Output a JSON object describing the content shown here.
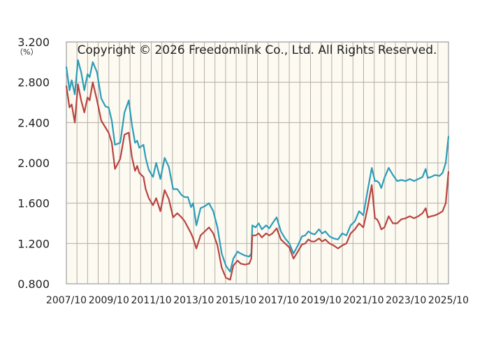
{
  "copyright": "Copyright © 2026 Freedomlink Co., Ltd. All Rights Reserved.",
  "colors": {
    "background": "#fdfaf2",
    "grid": "#b3aea6",
    "series_teal": "#2b9db8",
    "series_red": "#b84440"
  },
  "chart_data": {
    "type": "line",
    "y_unit_label": "（%）",
    "ylim": [
      0.8,
      3.2
    ],
    "yticks": [
      "0.800",
      "1.200",
      "1.600",
      "2.000",
      "2.400",
      "2.800",
      "3.200"
    ],
    "xlim": [
      2007.75,
      2025.83
    ],
    "xticks": [
      "2007/10",
      "2009/10",
      "2011/10",
      "2013/10",
      "2015/10",
      "2017/10",
      "2019/10",
      "2021/10",
      "2023/10",
      "2025/10"
    ],
    "grid": true,
    "series": [
      {
        "color": "#2b9db8",
        "x": [
          2007.75,
          2007.9,
          2008.0,
          2008.15,
          2008.3,
          2008.45,
          2008.6,
          2008.75,
          2008.85,
          2009.0,
          2009.2,
          2009.4,
          2009.6,
          2009.75,
          2009.9,
          2010.05,
          2010.3,
          2010.5,
          2010.7,
          2010.85,
          2011.0,
          2011.1,
          2011.2,
          2011.4,
          2011.5,
          2011.65,
          2011.85,
          2012.0,
          2012.2,
          2012.4,
          2012.6,
          2012.8,
          2013.0,
          2013.2,
          2013.35,
          2013.5,
          2013.65,
          2013.75,
          2013.9,
          2014.1,
          2014.3,
          2014.5,
          2014.7,
          2014.9,
          2015.1,
          2015.3,
          2015.5,
          2015.65,
          2015.85,
          2016.0,
          2016.2,
          2016.4,
          2016.5,
          2016.55,
          2016.7,
          2016.85,
          2017.0,
          2017.2,
          2017.35,
          2017.5,
          2017.7,
          2017.9,
          2018.1,
          2018.3,
          2018.5,
          2018.7,
          2018.9,
          2019.05,
          2019.2,
          2019.35,
          2019.5,
          2019.7,
          2019.85,
          2020.0,
          2020.2,
          2020.4,
          2020.6,
          2020.8,
          2021.0,
          2021.2,
          2021.4,
          2021.6,
          2021.8,
          2022.0,
          2022.2,
          2022.35,
          2022.45,
          2022.55,
          2022.65,
          2022.8,
          2023.0,
          2023.2,
          2023.4,
          2023.6,
          2023.8,
          2024.0,
          2024.2,
          2024.4,
          2024.6,
          2024.75,
          2024.85,
          2025.0,
          2025.2,
          2025.4,
          2025.55,
          2025.7,
          2025.83
        ],
        "values": [
          2.95,
          2.72,
          2.82,
          2.68,
          3.02,
          2.9,
          2.72,
          2.88,
          2.85,
          3.0,
          2.9,
          2.64,
          2.56,
          2.55,
          2.42,
          2.18,
          2.2,
          2.5,
          2.62,
          2.38,
          2.2,
          2.22,
          2.15,
          2.18,
          2.05,
          1.93,
          1.86,
          2.0,
          1.84,
          2.05,
          1.96,
          1.74,
          1.74,
          1.68,
          1.66,
          1.66,
          1.56,
          1.6,
          1.38,
          1.55,
          1.57,
          1.6,
          1.52,
          1.36,
          1.1,
          0.98,
          0.92,
          1.05,
          1.12,
          1.1,
          1.08,
          1.07,
          1.1,
          1.38,
          1.36,
          1.4,
          1.34,
          1.38,
          1.35,
          1.4,
          1.46,
          1.32,
          1.25,
          1.2,
          1.1,
          1.18,
          1.27,
          1.28,
          1.32,
          1.3,
          1.29,
          1.34,
          1.3,
          1.32,
          1.27,
          1.25,
          1.24,
          1.3,
          1.28,
          1.38,
          1.42,
          1.52,
          1.48,
          1.72,
          1.95,
          1.82,
          1.82,
          1.8,
          1.75,
          1.85,
          1.95,
          1.88,
          1.82,
          1.83,
          1.82,
          1.84,
          1.82,
          1.84,
          1.86,
          1.94,
          1.85,
          1.86,
          1.88,
          1.87,
          1.9,
          2.0,
          2.26
        ]
      },
      {
        "color": "#b84440",
        "x": [
          2007.75,
          2007.9,
          2008.0,
          2008.15,
          2008.3,
          2008.45,
          2008.6,
          2008.75,
          2008.85,
          2009.0,
          2009.2,
          2009.4,
          2009.6,
          2009.75,
          2009.9,
          2010.05,
          2010.3,
          2010.5,
          2010.7,
          2010.85,
          2011.0,
          2011.1,
          2011.2,
          2011.4,
          2011.5,
          2011.65,
          2011.85,
          2012.0,
          2012.2,
          2012.4,
          2012.6,
          2012.8,
          2013.0,
          2013.2,
          2013.35,
          2013.5,
          2013.65,
          2013.75,
          2013.9,
          2014.1,
          2014.3,
          2014.5,
          2014.7,
          2014.9,
          2015.1,
          2015.3,
          2015.5,
          2015.65,
          2015.85,
          2016.0,
          2016.2,
          2016.4,
          2016.5,
          2016.55,
          2016.7,
          2016.85,
          2017.0,
          2017.2,
          2017.35,
          2017.5,
          2017.7,
          2017.9,
          2018.1,
          2018.3,
          2018.5,
          2018.7,
          2018.9,
          2019.05,
          2019.2,
          2019.35,
          2019.5,
          2019.7,
          2019.85,
          2020.0,
          2020.2,
          2020.4,
          2020.6,
          2020.8,
          2021.0,
          2021.2,
          2021.4,
          2021.6,
          2021.8,
          2022.0,
          2022.2,
          2022.35,
          2022.45,
          2022.55,
          2022.65,
          2022.8,
          2023.0,
          2023.2,
          2023.4,
          2023.6,
          2023.8,
          2024.0,
          2024.2,
          2024.4,
          2024.6,
          2024.75,
          2024.85,
          2025.0,
          2025.2,
          2025.4,
          2025.55,
          2025.7,
          2025.83
        ],
        "values": [
          2.76,
          2.55,
          2.58,
          2.4,
          2.78,
          2.62,
          2.5,
          2.65,
          2.62,
          2.8,
          2.62,
          2.42,
          2.35,
          2.3,
          2.2,
          1.94,
          2.04,
          2.28,
          2.3,
          2.06,
          1.92,
          1.97,
          1.9,
          1.86,
          1.74,
          1.65,
          1.58,
          1.65,
          1.52,
          1.73,
          1.64,
          1.46,
          1.5,
          1.46,
          1.42,
          1.36,
          1.3,
          1.25,
          1.15,
          1.28,
          1.32,
          1.36,
          1.3,
          1.18,
          0.96,
          0.86,
          0.84,
          0.98,
          1.03,
          1.0,
          0.99,
          1.0,
          1.05,
          1.28,
          1.28,
          1.3,
          1.26,
          1.3,
          1.28,
          1.3,
          1.35,
          1.24,
          1.2,
          1.16,
          1.05,
          1.12,
          1.19,
          1.2,
          1.24,
          1.22,
          1.22,
          1.25,
          1.22,
          1.24,
          1.2,
          1.18,
          1.15,
          1.18,
          1.2,
          1.3,
          1.34,
          1.4,
          1.36,
          1.55,
          1.78,
          1.45,
          1.44,
          1.4,
          1.34,
          1.36,
          1.47,
          1.4,
          1.4,
          1.44,
          1.45,
          1.47,
          1.45,
          1.47,
          1.5,
          1.55,
          1.46,
          1.47,
          1.48,
          1.5,
          1.52,
          1.6,
          1.91
        ]
      }
    ]
  }
}
